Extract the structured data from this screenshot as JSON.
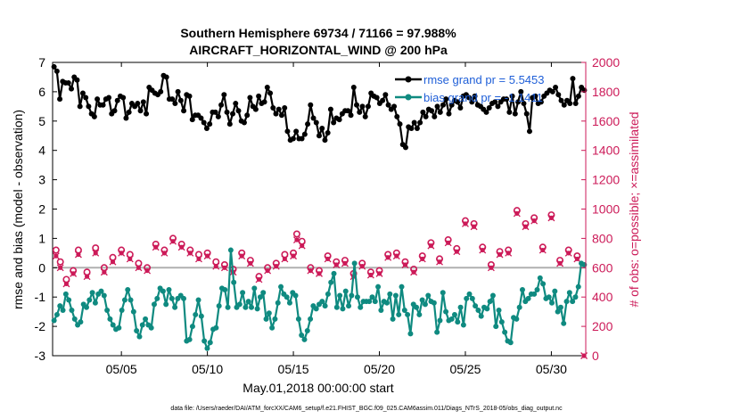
{
  "chart_data": {
    "type": "line",
    "title": "Southern Hemisphere 69734 / 71166 = 97.988%",
    "subtitle": "AIRCRAFT_HORIZONTAL_WIND @ 200 hPa",
    "xlabel": "May.01,2018 00:00:00 start",
    "ylabel_left": "rmse and bias (model - observation)",
    "ylabel_right": "# of obs: o=possible; ×=assimilated",
    "xlim": [
      1,
      32
    ],
    "ylim_left": [
      -3,
      7
    ],
    "ylim_right": [
      0,
      2000
    ],
    "x_ticks": [
      5,
      10,
      15,
      20,
      25,
      30
    ],
    "x_tick_labels": [
      "05/05",
      "05/10",
      "05/15",
      "05/20",
      "05/25",
      "05/30"
    ],
    "y_ticks_left": [
      "-3",
      "-2",
      "-1",
      "0",
      "1",
      "2",
      "3",
      "4",
      "5",
      "6",
      "7"
    ],
    "y_ticks_right": [
      "0",
      "200",
      "400",
      "600",
      "800",
      "1000",
      "1200",
      "1400",
      "1600",
      "1800",
      "2000"
    ],
    "legend": {
      "placement": "top-right",
      "rmse_label": "rmse grand pr = 5.5453",
      "bias_label": "bias grand pr = -1.1411"
    },
    "footer": "data file: /Users/raeder/DAI/ATM_forcXX/CAM6_setup/f.e21.FHIST_BGC.f09_025.CAM6assim.011/Diags_NTrS_2018-05/obs_diag_output.nc",
    "colors": {
      "rmse": "#000000",
      "bias": "#0f8a80",
      "obs": "#cc1a58",
      "zero_line": "#b0b0b0"
    },
    "series": [
      {
        "name": "rmse",
        "axis": "left",
        "values": [
          6.85,
          6.7,
          5.75,
          6.35,
          6.3,
          6.3,
          6.1,
          6.5,
          6.4,
          5.5,
          5.95,
          5.8,
          5.5,
          5.25,
          5.15,
          5.75,
          5.55,
          5.55,
          5.75,
          5.8,
          5.25,
          5.35,
          5.7,
          5.85,
          5.8,
          5.1,
          5.3,
          5.6,
          5.5,
          5.6,
          5.35,
          5.65,
          5.25,
          6.15,
          6.05,
          5.95,
          5.9,
          6.0,
          6.55,
          6.5,
          5.75,
          5.75,
          5.6,
          6.0,
          5.7,
          5.35,
          5.9,
          5.85,
          5.05,
          5.2,
          5.2,
          5.1,
          4.95,
          4.75,
          4.9,
          5.3,
          5.3,
          5.15,
          5.55,
          5.9,
          5.3,
          4.9,
          5.25,
          5.6,
          5.35,
          5.0,
          4.95,
          5.2,
          5.8,
          5.5,
          5.4,
          5.85,
          5.6,
          5.65,
          6.15,
          5.95,
          5.45,
          5.25,
          5.4,
          5.2,
          5.45,
          4.65,
          4.35,
          4.4,
          4.65,
          4.4,
          4.4,
          4.55,
          4.9,
          5.55,
          5.1,
          4.95,
          4.5,
          4.75,
          4.35,
          4.6,
          5.4,
          4.95,
          5.1,
          5.05,
          5.25,
          5.35,
          5.35,
          5.2,
          6.15,
          5.55,
          5.3,
          5.5,
          5.15,
          5.5,
          5.95,
          5.85,
          5.8,
          5.6,
          5.7,
          5.9,
          5.55,
          5.4,
          5.5,
          5.15,
          4.9,
          4.2,
          4.1,
          4.8,
          4.75,
          4.95,
          4.75,
          4.95,
          5.3,
          5.15,
          5.4,
          5.35,
          5.15,
          5.5,
          5.3,
          5.55,
          5.75,
          5.25,
          5.55,
          5.7,
          5.65,
          5.45,
          5.85,
          5.9,
          5.8,
          5.65,
          5.85,
          5.55,
          5.5,
          5.4,
          5.3,
          5.45,
          5.6,
          5.65,
          5.5,
          5.65,
          5.75,
          5.75,
          5.3,
          5.85,
          5.25,
          5.65,
          6.0,
          5.6,
          5.25,
          4.65,
          5.8,
          5.85,
          5.6,
          5.65,
          5.85,
          5.95,
          6.05,
          6.0,
          6.15,
          5.9,
          5.7,
          5.55,
          5.7,
          5.6,
          6.45,
          5.6,
          5.85,
          6.15,
          6.05
        ]
      },
      {
        "name": "bias",
        "axis": "left",
        "values": [
          -1.8,
          -1.6,
          -1.3,
          -1.45,
          -0.9,
          -1.1,
          -1.45,
          -1.75,
          -1.95,
          -1.85,
          -1.25,
          -1.35,
          -1.1,
          -0.85,
          -1.2,
          -0.9,
          -0.8,
          -0.95,
          -1.45,
          -1.75,
          -1.95,
          -2.1,
          -2.05,
          -1.45,
          -1.1,
          -0.75,
          -1.1,
          -1.5,
          -2.15,
          -2.35,
          -1.95,
          -1.75,
          -1.95,
          -2.05,
          -1.25,
          -1.05,
          -0.7,
          -0.8,
          -1.25,
          -0.75,
          -1.05,
          -1.35,
          -1.05,
          -0.95,
          -1.05,
          -2.5,
          -2.45,
          -2.0,
          -1.6,
          -1.1,
          -1.65,
          -2.5,
          -2.75,
          -2.55,
          -2.1,
          -2.05,
          -1.3,
          -0.7,
          -0.75,
          -1.35,
          0.6,
          -0.5,
          -1.35,
          -1.25,
          -0.85,
          -1.35,
          -1.15,
          -1.35,
          -0.7,
          -1.4,
          -1.0,
          -0.85,
          -1.75,
          -1.55,
          -2.05,
          -1.75,
          -1.2,
          -0.65,
          -0.9,
          -1.0,
          -1.2,
          -0.85,
          -0.95,
          -1.75,
          -2.3,
          -2.45,
          -2.15,
          -1.75,
          -1.3,
          -1.4,
          -1.25,
          -1.15,
          -1.3,
          -0.9,
          -0.5,
          -0.2,
          -1.35,
          -0.95,
          -1.4,
          -0.8,
          -1.3,
          -0.95,
          0.15,
          -1.0,
          -1.35,
          -1.15,
          -1.15,
          -1.15,
          -1.0,
          -1.15,
          -0.65,
          -1.45,
          -1.15,
          -1.2,
          -0.9,
          -1.75,
          -0.95,
          -1.6,
          -0.65,
          -1.45,
          -1.6,
          -2.25,
          -1.25,
          -1.35,
          -1.6,
          -1.1,
          -1.25,
          -0.95,
          -1.15,
          -1.2,
          -2.2,
          -1.8,
          -0.85,
          -1.5,
          -1.8,
          -1.75,
          -1.6,
          -1.85,
          -1.35,
          -1.95,
          -1.05,
          -0.9,
          -1.05,
          -1.3,
          -1.45,
          -1.65,
          -1.35,
          -1.4,
          -1.15,
          -0.95,
          -2.0,
          -1.45,
          -1.85,
          -2.2,
          -2.5,
          -2.55,
          -1.7,
          -1.75,
          -1.35,
          -0.75,
          -1.15,
          -1.05,
          -0.9,
          -0.9,
          -0.75,
          -0.35,
          -0.55,
          -1.05,
          -1.0,
          -1.2,
          -0.8,
          -1.5,
          -1.35,
          -1.9,
          -1.15,
          -0.85,
          -1.15,
          -1.0,
          -0.65,
          0.15,
          0.1
        ]
      },
      {
        "name": "obs_possible",
        "axis": "right",
        "x": [
          1.2,
          1.45,
          1.8,
          2.2,
          2.5,
          3.0,
          3.5,
          4.0,
          4.5,
          5.0,
          5.5,
          6.0,
          6.5,
          7.0,
          7.5,
          8.0,
          8.5,
          9.0,
          9.5,
          10.0,
          10.5,
          11.0,
          11.5,
          12.0,
          12.5,
          13.0,
          13.5,
          14.0,
          14.5,
          15.0,
          15.2,
          15.5,
          16.0,
          16.5,
          17.0,
          17.5,
          18.0,
          18.5,
          19.0,
          19.5,
          20.0,
          20.5,
          21.0,
          21.5,
          22.0,
          22.5,
          23.0,
          23.5,
          24.0,
          24.5,
          25.0,
          25.5,
          26.0,
          26.5,
          27.0,
          27.5,
          28.0,
          28.5,
          29.0,
          29.5,
          30.0,
          30.5,
          31.0,
          31.5
        ],
        "values": [
          720,
          640,
          520,
          580,
          720,
          570,
          735,
          600,
          670,
          720,
          690,
          630,
          600,
          760,
          720,
          800,
          760,
          720,
          690,
          700,
          640,
          620,
          590,
          700,
          650,
          540,
          600,
          630,
          690,
          700,
          830,
          780,
          600,
          580,
          680,
          640,
          650,
          560,
          630,
          570,
          580,
          690,
          700,
          640,
          590,
          680,
          770,
          660,
          790,
          730,
          920,
          900,
          740,
          620,
          710,
          720,
          990,
          900,
          940,
          740,
          960,
          650,
          720,
          680
        ]
      },
      {
        "name": "obs_assimilated",
        "axis": "right",
        "x": [
          1.2,
          1.45,
          1.8,
          2.2,
          2.5,
          3.0,
          3.5,
          4.0,
          4.5,
          5.0,
          5.5,
          6.0,
          6.5,
          7.0,
          7.5,
          8.0,
          8.5,
          9.0,
          9.5,
          10.0,
          10.5,
          11.0,
          11.5,
          12.0,
          12.5,
          13.0,
          13.5,
          14.0,
          14.5,
          15.0,
          15.2,
          15.5,
          16.0,
          16.5,
          17.0,
          17.5,
          18.0,
          18.5,
          19.0,
          19.5,
          20.0,
          20.5,
          21.0,
          21.5,
          22.0,
          22.5,
          23.0,
          23.5,
          24.0,
          24.5,
          25.0,
          25.5,
          26.0,
          26.5,
          27.0,
          27.5,
          28.0,
          28.5,
          29.0,
          29.5,
          30.0,
          30.5,
          31.0,
          31.5,
          31.9
        ],
        "values": [
          680,
          600,
          490,
          560,
          690,
          540,
          700,
          570,
          640,
          700,
          660,
          600,
          580,
          740,
          700,
          780,
          740,
          700,
          660,
          680,
          610,
          600,
          570,
          680,
          630,
          520,
          580,
          610,
          660,
          680,
          790,
          750,
          580,
          560,
          660,
          620,
          630,
          540,
          610,
          550,
          560,
          670,
          680,
          620,
          570,
          660,
          750,
          640,
          770,
          710,
          900,
          880,
          720,
          600,
          690,
          700,
          970,
          880,
          920,
          720,
          940,
          630,
          700,
          660,
          0
        ]
      }
    ]
  }
}
